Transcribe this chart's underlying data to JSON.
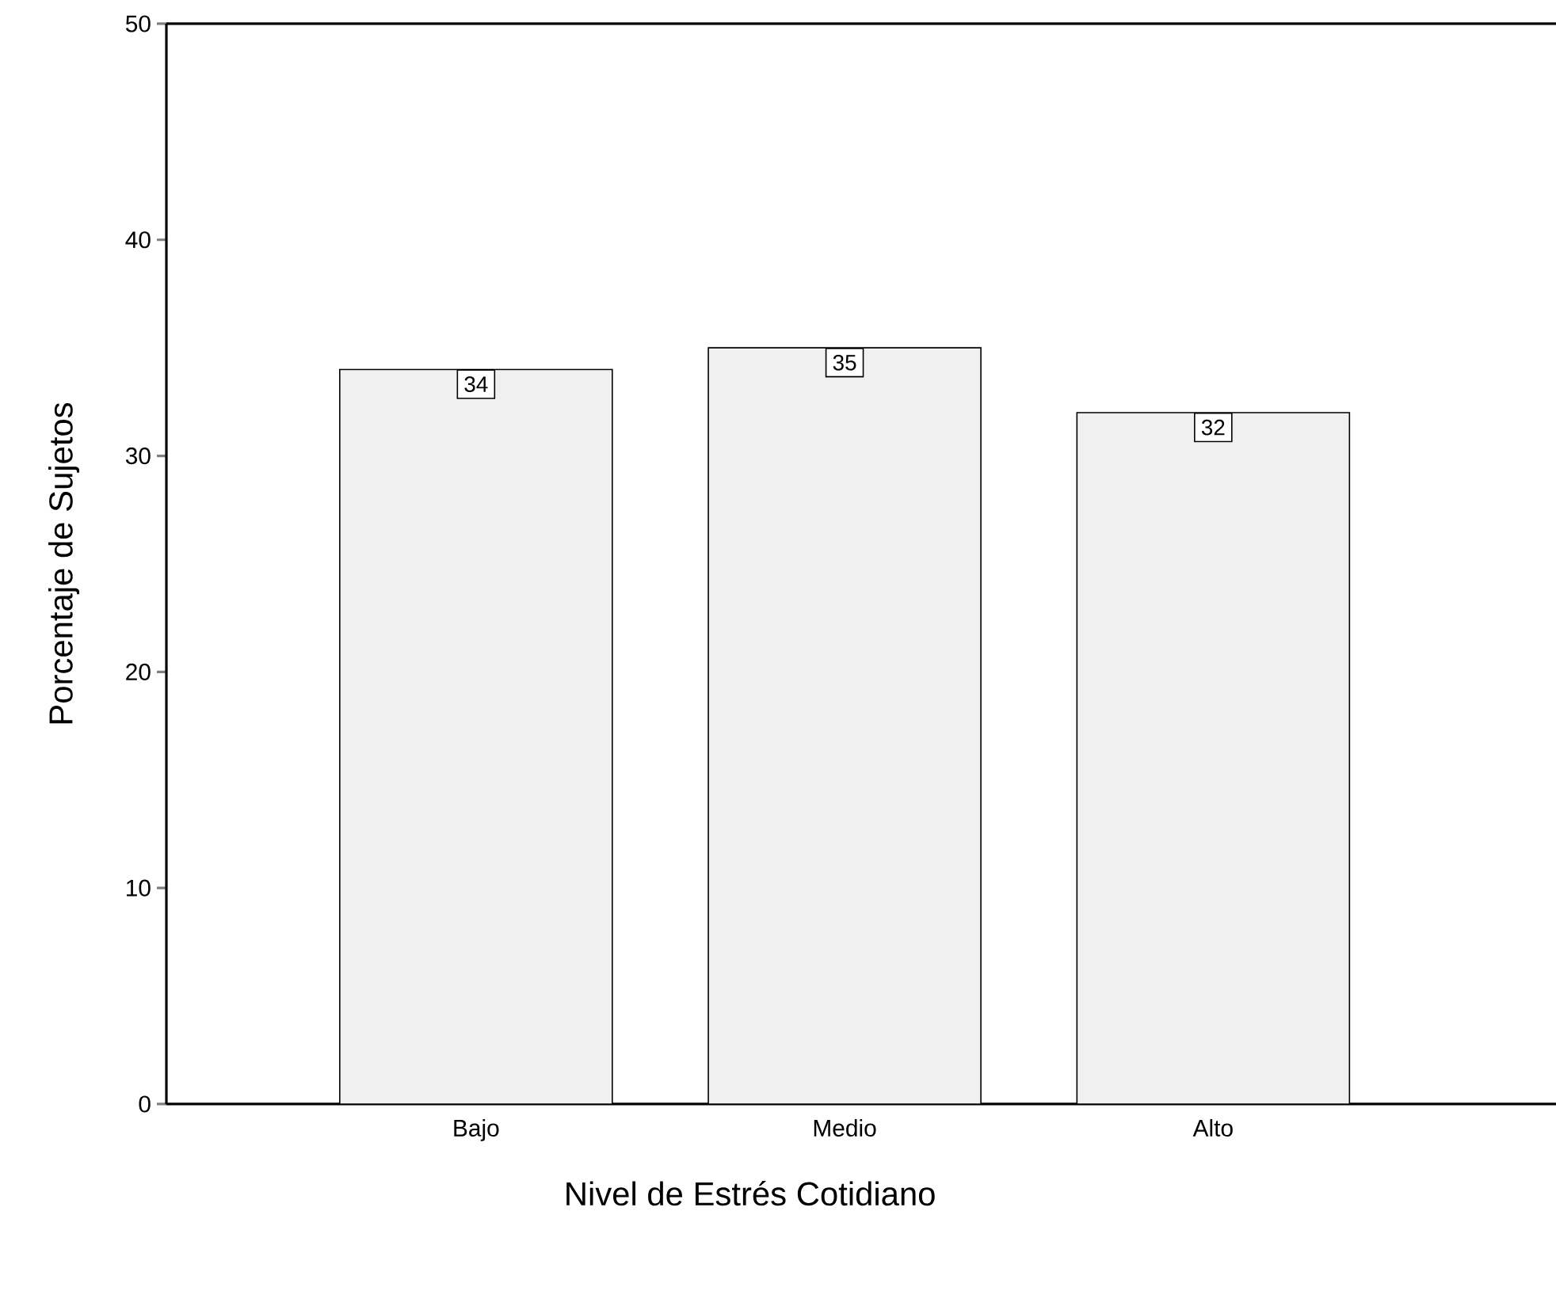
{
  "chart_data": {
    "type": "bar",
    "xlabel": "Nivel de Estrés Cotidiano",
    "ylabel": "Porcentaje de Sujetos",
    "categories": [
      "Bajo",
      "Medio",
      "Alto"
    ],
    "values": [
      34,
      35,
      32
    ],
    "color": "#f0f0f0",
    "ylim": [
      0,
      50
    ],
    "yticks": [
      0,
      10,
      20,
      30,
      40,
      50
    ],
    "data_labels": true,
    "grid": false
  }
}
